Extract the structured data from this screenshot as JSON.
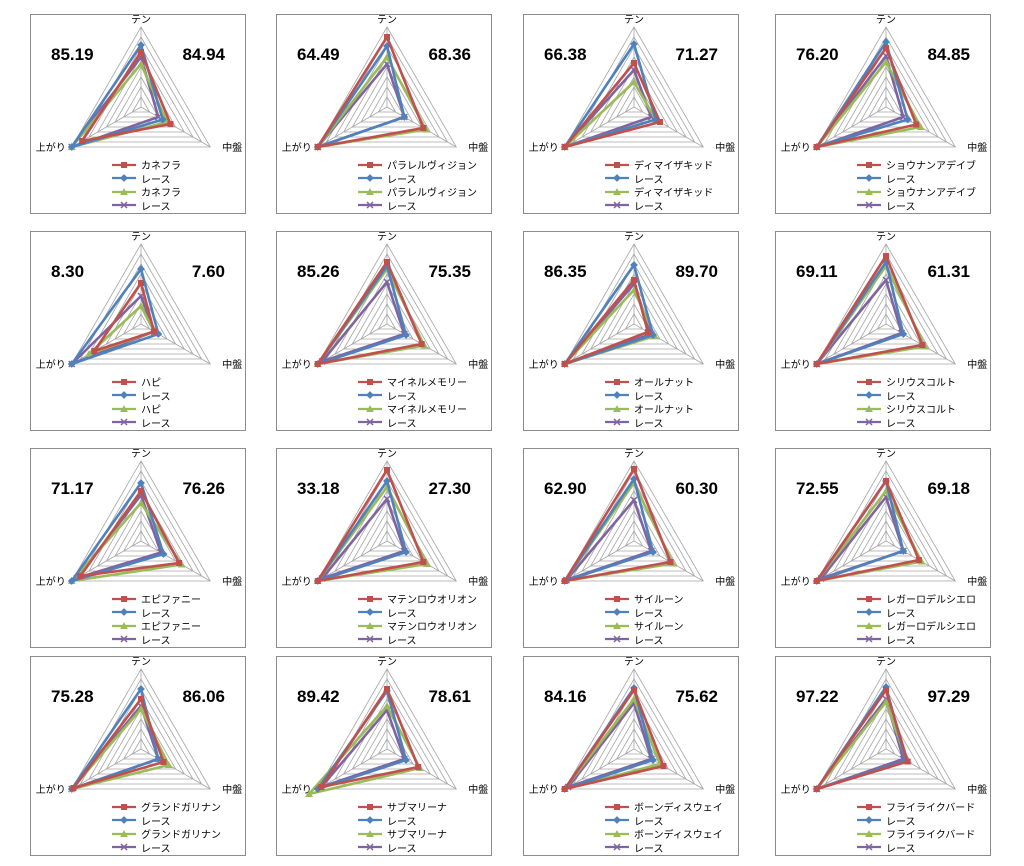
{
  "colors": {
    "red": "#c0504d",
    "blue": "#4f81bd",
    "green": "#9bbb59",
    "purple": "#8064a2",
    "grid": "#a6a6a6"
  },
  "axes": [
    "テン",
    "中盤",
    "上がり"
  ],
  "chart_data": [
    {
      "type": "radar",
      "axes": [
        "テン",
        "中盤",
        "上がり"
      ],
      "score_left": "85.19",
      "score_right": "84.94",
      "rlim": [
        0,
        8
      ],
      "series": [
        {
          "name": "カネフラ",
          "values": [
            5.5,
            3.4,
            6.8
          ]
        },
        {
          "name": "レース",
          "values": [
            6.2,
            2.5,
            8.0
          ]
        },
        {
          "name": "カネフラ",
          "values": [
            4.3,
            3.0,
            8.0
          ]
        },
        {
          "name": "レース",
          "values": [
            5.0,
            2.0,
            8.0
          ]
        }
      ]
    },
    {
      "type": "radar",
      "axes": [
        "テン",
        "中盤",
        "上がり"
      ],
      "score_left": "64.49",
      "score_right": "68.36",
      "rlim": [
        0,
        8
      ],
      "series": [
        {
          "name": "パラレルヴィジョン",
          "values": [
            7.0,
            4.2,
            8.0
          ]
        },
        {
          "name": "レース",
          "values": [
            6.1,
            2.0,
            8.0
          ]
        },
        {
          "name": "パラレルヴィジョン",
          "values": [
            5.0,
            4.5,
            8.0
          ]
        },
        {
          "name": "レース",
          "values": [
            4.3,
            2.0,
            8.0
          ]
        }
      ]
    },
    {
      "type": "radar",
      "axes": [
        "テン",
        "中盤",
        "上がり"
      ],
      "score_left": "66.38",
      "score_right": "71.27",
      "rlim": [
        0,
        8
      ],
      "series": [
        {
          "name": "ディマイザキッド",
          "values": [
            4.4,
            3.0,
            8.0
          ]
        },
        {
          "name": "レース",
          "values": [
            6.3,
            2.5,
            8.0
          ]
        },
        {
          "name": "ディマイザキッド",
          "values": [
            2.5,
            2.5,
            8.0
          ]
        },
        {
          "name": "レース",
          "values": [
            3.7,
            2.0,
            8.0
          ]
        }
      ]
    },
    {
      "type": "radar",
      "axes": [
        "テン",
        "中盤",
        "上がり"
      ],
      "score_left": "76.20",
      "score_right": "84.85",
      "rlim": [
        0,
        8
      ],
      "series": [
        {
          "name": "ショウナンアデイブ",
          "values": [
            5.9,
            3.5,
            8.0
          ]
        },
        {
          "name": "レース",
          "values": [
            6.5,
            2.5,
            8.0
          ]
        },
        {
          "name": "ショウナンアデイブ",
          "values": [
            4.5,
            4.0,
            8.0
          ]
        },
        {
          "name": "レース",
          "values": [
            5.1,
            2.0,
            8.0
          ]
        }
      ]
    },
    {
      "type": "radar",
      "axes": [
        "テン",
        "中盤",
        "上がり"
      ],
      "score_left": "8.30",
      "score_right": "7.60",
      "rlim": [
        0,
        8
      ],
      "series": [
        {
          "name": "ハピ",
          "values": [
            4.1,
            1.5,
            5.4
          ]
        },
        {
          "name": "レース",
          "values": [
            5.5,
            2.0,
            8.0
          ]
        },
        {
          "name": "ハピ",
          "values": [
            1.8,
            1.5,
            6.0
          ]
        },
        {
          "name": "レース",
          "values": [
            2.8,
            1.5,
            8.0
          ]
        }
      ]
    },
    {
      "type": "radar",
      "axes": [
        "テン",
        "中盤",
        "上がり"
      ],
      "score_left": "85.26",
      "score_right": "75.35",
      "rlim": [
        0,
        8
      ],
      "series": [
        {
          "name": "マイネルメモリー",
          "values": [
            6.2,
            4.0,
            8.0
          ]
        },
        {
          "name": "レース",
          "values": [
            5.8,
            2.2,
            8.0
          ]
        },
        {
          "name": "マイネルメモリー",
          "values": [
            5.5,
            4.3,
            8.0
          ]
        },
        {
          "name": "レース",
          "values": [
            4.2,
            2.0,
            7.5
          ]
        }
      ]
    },
    {
      "type": "radar",
      "axes": [
        "テン",
        "中盤",
        "上がり"
      ],
      "score_left": "86.35",
      "score_right": "89.70",
      "rlim": [
        0,
        8
      ],
      "series": [
        {
          "name": "オールナット",
          "values": [
            4.4,
            1.6,
            8.0
          ]
        },
        {
          "name": "レース",
          "values": [
            5.9,
            2.2,
            8.0
          ]
        },
        {
          "name": "オールナット",
          "values": [
            3.4,
            2.4,
            8.0
          ]
        },
        {
          "name": "レース",
          "values": [
            4.0,
            2.0,
            8.0
          ]
        }
      ]
    },
    {
      "type": "radar",
      "axes": [
        "テン",
        "中盤",
        "上がり"
      ],
      "score_left": "69.11",
      "score_right": "61.31",
      "rlim": [
        0,
        8
      ],
      "series": [
        {
          "name": "シリウスコルト",
          "values": [
            6.8,
            4.2,
            8.0
          ]
        },
        {
          "name": "レース",
          "values": [
            6.2,
            2.0,
            8.0
          ]
        },
        {
          "name": "シリウスコルト",
          "values": [
            5.8,
            4.5,
            8.0
          ]
        },
        {
          "name": "レース",
          "values": [
            4.4,
            1.8,
            8.0
          ]
        }
      ]
    },
    {
      "type": "radar",
      "axes": [
        "テン",
        "中盤",
        "上がり"
      ],
      "score_left": "71.17",
      "score_right": "76.26",
      "rlim": [
        0,
        8
      ],
      "series": [
        {
          "name": "エピファニー",
          "values": [
            5.0,
            4.4,
            7.0
          ]
        },
        {
          "name": "レース",
          "values": [
            5.8,
            2.6,
            8.0
          ]
        },
        {
          "name": "エピファニー",
          "values": [
            3.8,
            4.7,
            8.0
          ]
        },
        {
          "name": "レース",
          "values": [
            4.6,
            2.3,
            7.4
          ]
        }
      ]
    },
    {
      "type": "radar",
      "axes": [
        "テン",
        "中盤",
        "上がり"
      ],
      "score_left": "33.18",
      "score_right": "27.30",
      "rlim": [
        0,
        8
      ],
      "series": [
        {
          "name": "マテンロウオリオン",
          "values": [
            7.1,
            4.2,
            8.0
          ]
        },
        {
          "name": "レース",
          "values": [
            6.0,
            2.2,
            8.0
          ]
        },
        {
          "name": "マテンロウオリオン",
          "values": [
            5.4,
            4.6,
            8.0
          ]
        },
        {
          "name": "レース",
          "values": [
            4.2,
            2.0,
            7.5
          ]
        }
      ]
    },
    {
      "type": "radar",
      "axes": [
        "テン",
        "中盤",
        "上がり"
      ],
      "score_left": "62.90",
      "score_right": "60.30",
      "rlim": [
        0,
        8
      ],
      "series": [
        {
          "name": "サイルーン",
          "values": [
            7.2,
            4.2,
            8.0
          ]
        },
        {
          "name": "レース",
          "values": [
            6.2,
            2.2,
            8.0
          ]
        },
        {
          "name": "サイルーン",
          "values": [
            5.8,
            4.5,
            8.0
          ]
        },
        {
          "name": "レース",
          "values": [
            4.1,
            2.0,
            7.8
          ]
        }
      ]
    },
    {
      "type": "radar",
      "axes": [
        "テン",
        "中盤",
        "上がり"
      ],
      "score_left": "72.55",
      "score_right": "69.18",
      "rlim": [
        0,
        8
      ],
      "series": [
        {
          "name": "レガーロデルシエロ",
          "values": [
            6.0,
            3.8,
            8.0
          ]
        },
        {
          "name": "レース",
          "values": [
            6.0,
            2.0,
            8.0
          ]
        },
        {
          "name": "レガーロデルシエロ",
          "values": [
            5.0,
            4.1,
            8.0
          ]
        },
        {
          "name": "レース",
          "values": [
            4.4,
            2.0,
            7.5
          ]
        }
      ]
    },
    {
      "type": "radar",
      "axes": [
        "テン",
        "中盤",
        "上がり"
      ],
      "score_left": "75.28",
      "score_right": "86.06",
      "rlim": [
        0,
        8
      ],
      "series": [
        {
          "name": "グランドガリナン",
          "values": [
            5.0,
            2.6,
            7.8
          ]
        },
        {
          "name": "レース",
          "values": [
            6.0,
            2.0,
            8.0
          ]
        },
        {
          "name": "グランドガリナン",
          "values": [
            4.0,
            3.2,
            8.0
          ]
        },
        {
          "name": "レース",
          "values": [
            4.3,
            2.0,
            8.0
          ]
        }
      ]
    },
    {
      "type": "radar",
      "axes": [
        "テン",
        "中盤",
        "上がり"
      ],
      "score_left": "89.42",
      "score_right": "78.61",
      "rlim": [
        0,
        8
      ],
      "series": [
        {
          "name": "サブマリーナ",
          "values": [
            6.0,
            3.6,
            7.6
          ]
        },
        {
          "name": "レース",
          "values": [
            5.8,
            2.2,
            8.0
          ]
        },
        {
          "name": "サブマリーナ",
          "values": [
            4.3,
            3.8,
            9.0
          ]
        },
        {
          "name": "レース",
          "values": [
            3.9,
            2.0,
            7.6
          ]
        }
      ]
    },
    {
      "type": "radar",
      "axes": [
        "テン",
        "中盤",
        "上がり"
      ],
      "score_left": "84.16",
      "score_right": "75.62",
      "rlim": [
        0,
        8
      ],
      "series": [
        {
          "name": "ボーンディスウェイ",
          "values": [
            5.9,
            3.4,
            8.0
          ]
        },
        {
          "name": "レース",
          "values": [
            6.1,
            2.2,
            8.0
          ]
        },
        {
          "name": "ボーンディスウェイ",
          "values": [
            5.0,
            3.0,
            8.0
          ]
        },
        {
          "name": "レース",
          "values": [
            4.6,
            2.0,
            7.6
          ]
        }
      ]
    },
    {
      "type": "radar",
      "axes": [
        "テン",
        "中盤",
        "上がり"
      ],
      "score_left": "97.22",
      "score_right": "97.29",
      "rlim": [
        0,
        8
      ],
      "series": [
        {
          "name": "フライライクバード",
          "values": [
            5.9,
            2.5,
            8.0
          ]
        },
        {
          "name": "レース",
          "values": [
            6.2,
            2.3,
            8.0
          ]
        },
        {
          "name": "フライライクバード",
          "values": [
            4.7,
            2.4,
            8.0
          ]
        },
        {
          "name": "レース",
          "values": [
            5.0,
            2.0,
            8.0
          ]
        }
      ]
    }
  ]
}
